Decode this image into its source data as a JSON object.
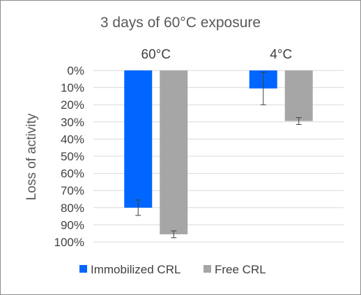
{
  "chart_data": {
    "type": "bar",
    "title": "3 days of 60°C exposure",
    "xlabel": "",
    "ylabel": "Loss of activity",
    "categories": [
      "60°C",
      "4°C"
    ],
    "series": [
      {
        "name": "Immobilized CRL",
        "color": "#0066ff",
        "values": [
          80,
          10.5
        ],
        "error": [
          4.5,
          9.5
        ]
      },
      {
        "name": "Free CRL",
        "color": "#a6a6a6",
        "values": [
          95.5,
          29.5
        ],
        "error": [
          2,
          2
        ]
      }
    ],
    "ylim": [
      0,
      100
    ],
    "y_axis_inverted": true,
    "category_labels_position": "top",
    "yticks": [
      "0%",
      "10%",
      "20%",
      "30%",
      "40%",
      "50%",
      "60%",
      "70%",
      "80%",
      "90%",
      "100%"
    ],
    "grid": true,
    "legend": "bottom"
  }
}
